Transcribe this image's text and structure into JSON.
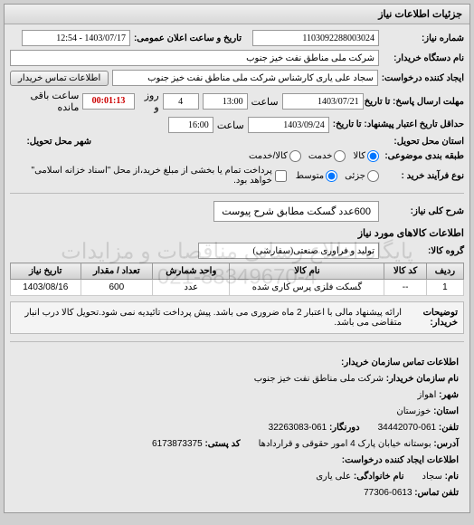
{
  "panel_title": "جزئیات اطلاعات نیاز",
  "fields": {
    "request_no_label": "شماره نیاز:",
    "request_no": "1103092288003024",
    "announce_label": "تاریخ و ساعت اعلان عمومی:",
    "announce_value": "1403/07/17 - 12:54",
    "buyer_org_label": "نام دستگاه خریدار:",
    "buyer_org": "شرکت ملی مناطق نفت خیز جنوب",
    "creator_label": "ایجاد کننده درخواست:",
    "creator": "سجاد علی یاری کارشناس شرکت ملی مناطق نفت خیز جنوب",
    "contact_btn": "اطلاعات تماس خریدار",
    "deadline_label": "مهلت ارسال پاسخ: تا تاریخ:",
    "deadline_date": "1403/07/21",
    "time_label": "ساعت",
    "deadline_time": "13:00",
    "days_label": "روز و",
    "days_value": "4",
    "remaining_label": "ساعت باقی مانده",
    "remaining_time": "00:01:13",
    "validity_label": "حداقل تاریخ اعتبار\nپیشنهاد: تا تاریخ:",
    "validity_date": "1403/09/24",
    "validity_time": "16:00",
    "delivery_province_label": "استان محل تحویل:",
    "delivery_city_label": "شهر محل تحویل:",
    "category_label": "طبقه بندی موضوعی:",
    "radio_goods": "کالا",
    "radio_service": "خدمت",
    "radio_both": "کالا/خدمت",
    "process_label": "نوع فرآیند خرید :",
    "radio_small": "جزئی",
    "radio_medium": "متوسط",
    "process_note": "پرداخت تمام یا بخشی از مبلغ خرید،از محل \"اسناد خزانه اسلامی\" خواهد بود.",
    "summary_label": "شرح کلی نیاز:",
    "summary_value": "600عدد گسکت مطابق شرح پیوست",
    "items_title": "اطلاعات کالاهای مورد نیاز",
    "group_label": "گروه کالا:",
    "group_value": "تولید و فرآوری صنعتی(سفارشی)",
    "note_label": "توضیحات خریدار:",
    "note_text": "ارائه پیشنهاد مالی با اعتبار 2 ماه ضروری می باشد. پیش پرداخت تائیدیه نمی شود.تحویل کالا درب انبار متقاضی می باشد.",
    "contact_title": "اطلاعات تماس سازمان خریدار:",
    "org_name_label": "نام سازمان خریدار:",
    "org_name": "شرکت ملی مناطق نفت خیز جنوب",
    "city_label": "شهر:",
    "city": "اهواز",
    "province_label": "استان:",
    "province": "خوزستان",
    "phone_label": "تلفن:",
    "phone": "061-34442070",
    "fax_label": "دورنگار:",
    "fax": "061-32263083",
    "address_label": "آدرس:",
    "address": "بوستانه خیابان پارک 4 امور حقوقی و قراردادها",
    "postal_label": "کد پستی:",
    "postal": "6173873375",
    "creator_info_title": "اطلاعات ایجاد کننده درخواست:",
    "name_label": "نام:",
    "name": "سجاد",
    "surname_label": "نام خانوادگی:",
    "surname": "علی یاری",
    "contact_phone_label": "تلفن تماس:",
    "contact_phone": "0613-77306"
  },
  "table": {
    "headers": [
      "ردیف",
      "کد کالا",
      "نام کالا",
      "واحد شمارش",
      "تعداد / مقدار",
      "تاریخ نیاز"
    ],
    "rows": [
      [
        "1",
        "--",
        "گسکت فلزی پرس کاری شده",
        "عدد",
        "600",
        "1403/08/16"
      ]
    ]
  },
  "watermark_line1": "پایگاه اطلاع رسانی مناقصات و مزایدات",
  "watermark_line2": "021-88349670-4"
}
